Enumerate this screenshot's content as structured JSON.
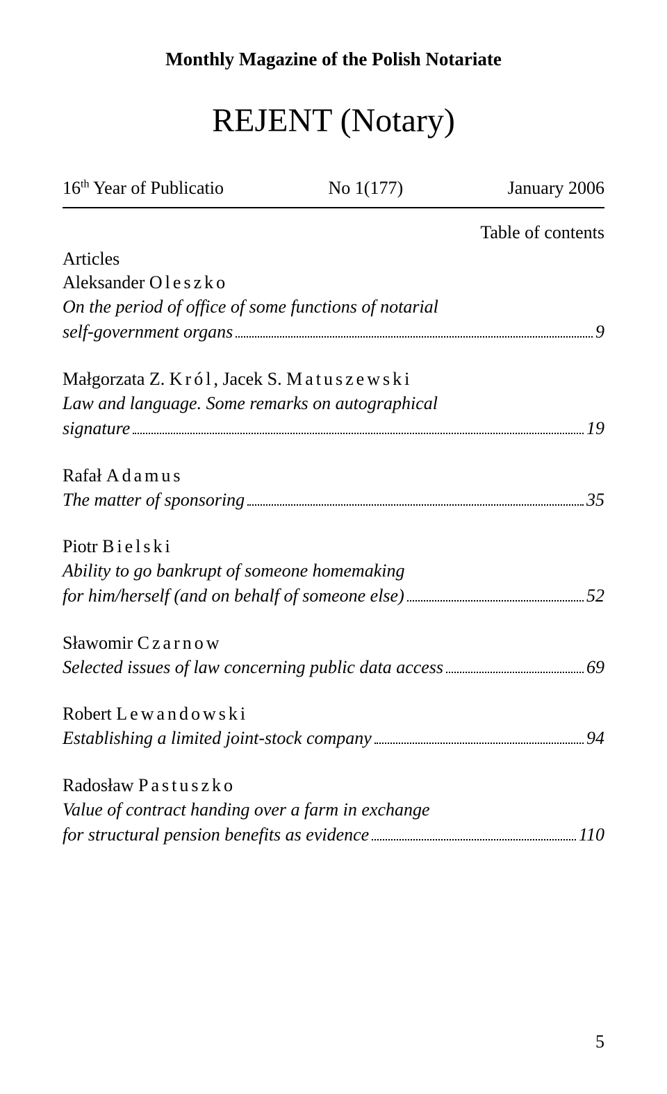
{
  "header": "Monthly Magazine of the Polish Notariate",
  "title": "REJENT (Notary)",
  "pub_year_prefix": "16",
  "pub_year_suffix": "th",
  "pub_year_rest": " Year of Publicatio",
  "pub_issue": "No 1(177)",
  "pub_date": "January 2006",
  "toc_label": "Table of contents",
  "section_label": "Articles",
  "entries": [
    {
      "author_first": "Aleksander",
      "author_last": "Oleszko",
      "title_lines": [
        "On the period of office of some functions of notarial"
      ],
      "title_last": "self-government organs",
      "page": "9"
    },
    {
      "author_first": "Małgorzata Z.",
      "author_last": "Król",
      "author2_first": ", Jacek S.",
      "author2_last": "Matuszewski",
      "title_lines": [
        "Law and language. Some remarks on autographical"
      ],
      "title_last": "signature",
      "page": "19"
    },
    {
      "author_first": "Rafał",
      "author_last": "Adamus",
      "title_lines": [],
      "title_last": "The matter of sponsoring",
      "page": "35"
    },
    {
      "author_first": "Piotr",
      "author_last": "Bielski",
      "title_lines": [
        "Ability to go bankrupt of someone homemaking"
      ],
      "title_last": "for him/herself (and on behalf of someone else)",
      "page": "52"
    },
    {
      "author_first": "Sławomir",
      "author_last": "Czarnow",
      "title_lines": [],
      "title_last": "Selected issues of law concerning public data access",
      "page": "69"
    },
    {
      "author_first": "Robert",
      "author_last": "Lewandowski",
      "title_lines": [],
      "title_last": "Establishing a limited joint-stock company",
      "page": "94"
    },
    {
      "author_first": "Radosław",
      "author_last": "Pastuszko",
      "title_lines": [
        "Value of contract handing over a farm in exchange"
      ],
      "title_last": "for structural pension benefits as evidence",
      "page": "110"
    }
  ],
  "page_number": "5"
}
